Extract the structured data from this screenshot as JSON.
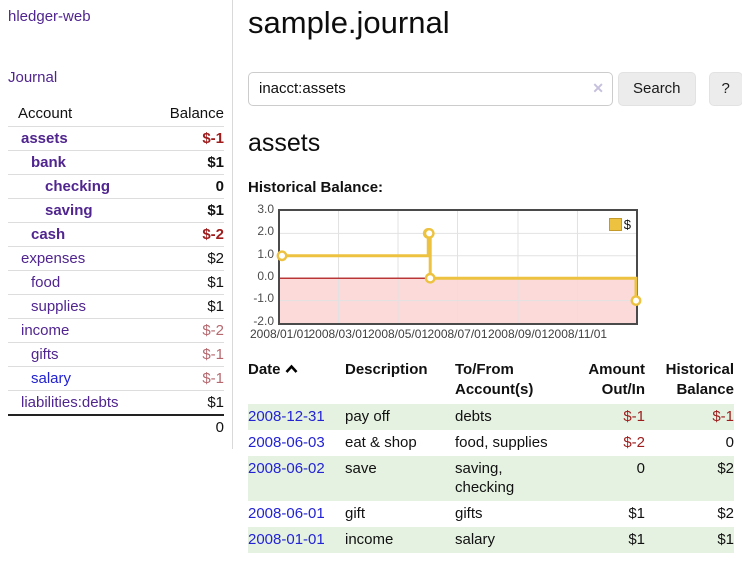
{
  "colors": {
    "link_purple": "#50258f",
    "link_blue": "#2222d2",
    "negative_strong": "#9e1c1c",
    "negative_soft": "#b5696f",
    "row_stripe_green": "#e5f2e1",
    "series_gold": "#EDC240",
    "negative_region_pink": "#fcdada",
    "zero_line_red": "#a40000"
  },
  "icons": {
    "clear": "clear-x-icon",
    "sort": "chevron-up-icon",
    "legend_swatch": "legend-swatch"
  },
  "app": {
    "brand": "hledger-web",
    "journal_link": "Journal"
  },
  "sidebar": {
    "header": {
      "account": "Account",
      "balance": "Balance"
    },
    "accounts": [
      {
        "name": "assets",
        "balance": "$-1",
        "level": 0,
        "bold": true,
        "neg": "strong"
      },
      {
        "name": "bank",
        "balance": "$1",
        "level": 1,
        "bold": true
      },
      {
        "name": "checking",
        "balance": "0",
        "level": 2,
        "bold": true
      },
      {
        "name": "saving",
        "balance": "$1",
        "level": 2,
        "bold": true
      },
      {
        "name": "cash",
        "balance": "$-2",
        "level": 1,
        "bold": true,
        "neg": "strong"
      },
      {
        "name": "expenses",
        "balance": "$2",
        "level": 0
      },
      {
        "name": "food",
        "balance": "$1",
        "level": 1
      },
      {
        "name": "supplies",
        "balance": "$1",
        "level": 1
      },
      {
        "name": "income",
        "balance": "$-2",
        "level": 0,
        "neg": "soft"
      },
      {
        "name": "gifts",
        "balance": "$-1",
        "level": 1,
        "neg": "soft"
      },
      {
        "name": "salary",
        "balance": "$-1",
        "level": 1,
        "neg": "soft",
        "blue": true
      },
      {
        "name": "liabilities:debts",
        "balance": "$1",
        "level": 0
      }
    ],
    "total": "0"
  },
  "main": {
    "title": "sample.journal",
    "search": {
      "value": "inacct:assets",
      "clear": "✕",
      "button": "Search",
      "help": "?"
    },
    "account_heading": "assets",
    "chart_heading": "Historical Balance:"
  },
  "chart_data": {
    "type": "line",
    "step": true,
    "title": "Historical Balance",
    "series": [
      {
        "name": "$",
        "color": "#EDC240",
        "points": [
          {
            "date": "2008-01-01",
            "value": 1
          },
          {
            "date": "2008-06-01",
            "value": 2
          },
          {
            "date": "2008-06-02",
            "value": 2
          },
          {
            "date": "2008-06-03",
            "value": 0
          },
          {
            "date": "2008-12-31",
            "value": -1
          }
        ]
      }
    ],
    "ylim": [
      -2,
      3
    ],
    "yticks": [
      "3.0",
      "2.0",
      "1.0",
      "0.0",
      "-1.0",
      "-2.0"
    ],
    "xticks": [
      "2008/01/01",
      "2008/03/01",
      "2008/05/01",
      "2008/07/01",
      "2008/09/01",
      "2008/11/01"
    ],
    "x_range": [
      "2008-01-01",
      "2008-12-31"
    ],
    "grid": true,
    "legend_position": "top-right",
    "negative_region_color": "#fcdada",
    "zero_line_color": "#a40000"
  },
  "register": {
    "columns": [
      "Date",
      "Description",
      "To/From Account(s)",
      "Amount Out/In",
      "Historical Balance"
    ],
    "sort": {
      "column": "Date",
      "direction": "ascending"
    },
    "rows": [
      {
        "date": "2008-12-31",
        "description": "pay off",
        "accounts": "debts",
        "amount": "$-1",
        "amount_neg": true,
        "balance": "$-1",
        "balance_neg": true
      },
      {
        "date": "2008-06-03",
        "description": "eat & shop",
        "accounts": "food, supplies",
        "amount": "$-2",
        "amount_neg": true,
        "balance": "0",
        "balance_neg": false
      },
      {
        "date": "2008-06-02",
        "description": "save",
        "accounts": "saving, checking",
        "amount": "0",
        "amount_neg": false,
        "balance": "$2",
        "balance_neg": false
      },
      {
        "date": "2008-06-01",
        "description": "gift",
        "accounts": "gifts",
        "amount": "$1",
        "amount_neg": false,
        "balance": "$2",
        "balance_neg": false
      },
      {
        "date": "2008-01-01",
        "description": "income",
        "accounts": "salary",
        "amount": "$1",
        "amount_neg": false,
        "balance": "$1",
        "balance_neg": false
      }
    ]
  }
}
